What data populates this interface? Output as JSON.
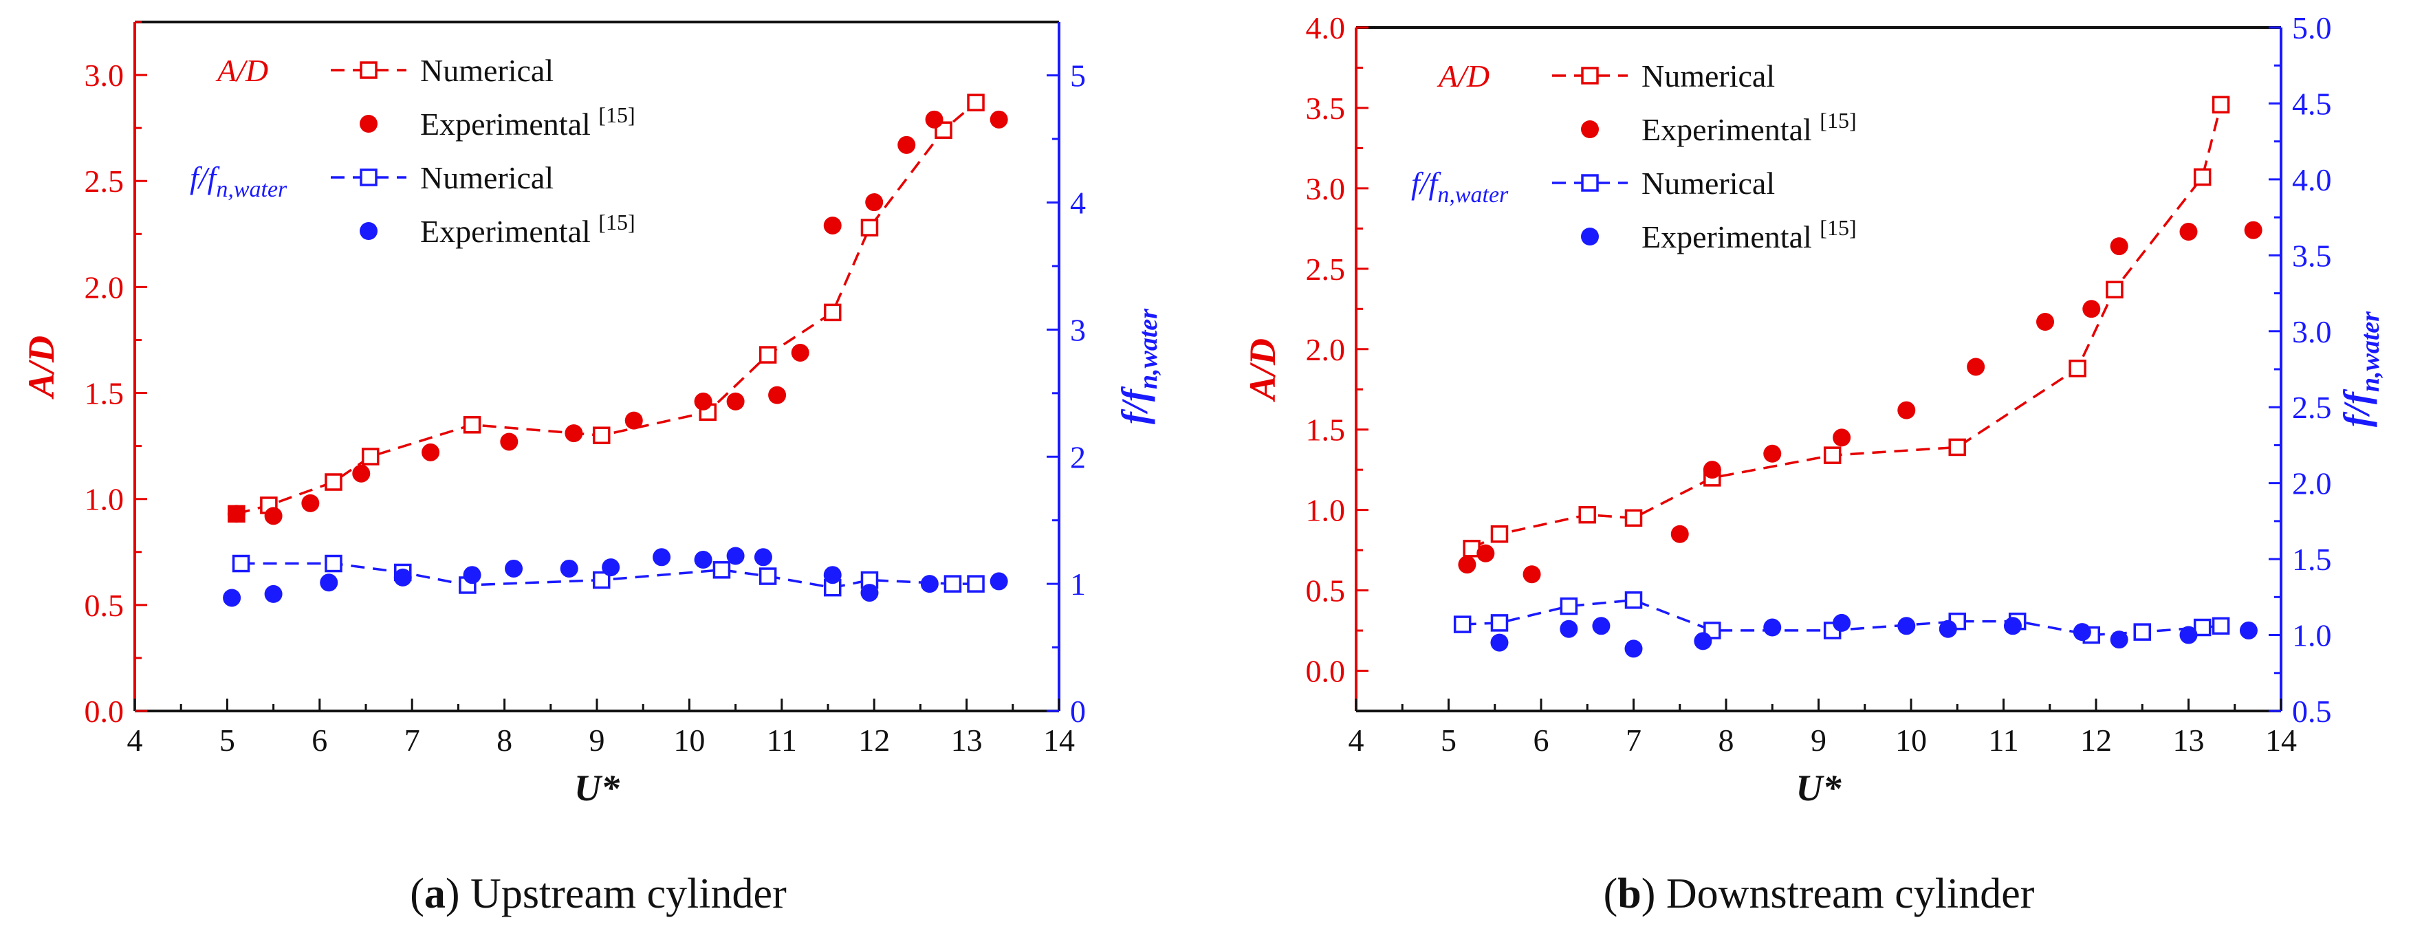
{
  "chart_data": [
    {
      "type": "scatter",
      "panel": "a",
      "caption_letter": "a",
      "caption_text": "Upstream cylinder",
      "xlabel": "U*",
      "ylabel_left": "A/D",
      "ylabel_right_main": "f/f",
      "ylabel_right_sub": "n,water",
      "xlim": [
        4,
        14
      ],
      "ylim_left": [
        0,
        3.25
      ],
      "ylim_right": [
        0,
        5.42
      ],
      "xticks": [
        "4",
        "5",
        "6",
        "7",
        "8",
        "9",
        "10",
        "11",
        "12",
        "13",
        "14"
      ],
      "yticks_left": [
        "0.0",
        "0.5",
        "1.0",
        "1.5",
        "2.0",
        "2.5",
        "3.0"
      ],
      "yticks_right": [
        "0",
        "1",
        "2",
        "3",
        "4",
        "5"
      ],
      "legend": {
        "ad_label": "A/D",
        "ff_label_main": "f/f",
        "ff_label_sub": "n,water",
        "numerical": "Numerical",
        "experimental": "Experimental",
        "ref": "[15]"
      },
      "colors": {
        "ad": "#e60000",
        "ff": "#1a1aff",
        "axis": "#111111"
      },
      "series": [
        {
          "name": "A/D Numerical",
          "axis": "left",
          "style": "dashed-square",
          "color": "#e60000",
          "x": [
            5.1,
            5.45,
            6.15,
            6.55,
            7.65,
            9.05,
            10.2,
            10.85,
            11.55,
            11.95,
            12.75,
            13.1
          ],
          "y": [
            0.93,
            0.97,
            1.08,
            1.2,
            1.35,
            1.3,
            1.41,
            1.68,
            1.88,
            2.28,
            2.74,
            2.87
          ]
        },
        {
          "name": "A/D Experimental [15]",
          "axis": "left",
          "style": "dot",
          "color": "#e60000",
          "x": [
            5.1,
            5.5,
            5.9,
            6.45,
            7.2,
            8.05,
            8.75,
            9.4,
            10.15,
            10.5,
            10.95,
            11.2,
            11.55,
            12.0,
            12.35,
            12.65,
            13.35
          ],
          "y": [
            0.93,
            0.92,
            0.98,
            1.12,
            1.22,
            1.27,
            1.31,
            1.37,
            1.46,
            1.46,
            1.49,
            1.69,
            2.29,
            2.4,
            2.67,
            2.79,
            2.79
          ]
        },
        {
          "name": "f/f_n,water Numerical",
          "axis": "right",
          "style": "dashed-square",
          "color": "#1a1aff",
          "x": [
            5.15,
            6.15,
            6.9,
            7.6,
            9.05,
            10.35,
            10.85,
            11.55,
            11.95,
            12.85,
            13.1
          ],
          "y": [
            1.16,
            1.16,
            1.09,
            0.99,
            1.03,
            1.11,
            1.06,
            0.97,
            1.03,
            1.0,
            1.0
          ]
        },
        {
          "name": "f/f_n,water Experimental [15]",
          "axis": "right",
          "style": "dot",
          "color": "#1a1aff",
          "x": [
            5.05,
            5.5,
            6.1,
            6.9,
            7.65,
            8.1,
            8.7,
            9.15,
            9.7,
            10.15,
            10.5,
            10.8,
            11.55,
            11.95,
            12.6,
            13.35
          ],
          "y": [
            0.89,
            0.92,
            1.01,
            1.05,
            1.07,
            1.12,
            1.12,
            1.13,
            1.21,
            1.19,
            1.22,
            1.21,
            1.07,
            0.93,
            1.0,
            1.02
          ]
        }
      ]
    },
    {
      "type": "scatter",
      "panel": "b",
      "caption_letter": "b",
      "caption_text": "Downstream cylinder",
      "xlabel": "U*",
      "ylabel_left": "A/D",
      "ylabel_right_main": "f/f",
      "ylabel_right_sub": "n,water",
      "xlim": [
        4,
        14
      ],
      "ylim_left": [
        -0.25,
        4.0
      ],
      "ylim_right": [
        0.5,
        5.0
      ],
      "xticks": [
        "4",
        "5",
        "6",
        "7",
        "8",
        "9",
        "10",
        "11",
        "12",
        "13",
        "14"
      ],
      "yticks_left": [
        "0.0",
        "0.5",
        "1.0",
        "1.5",
        "2.0",
        "2.5",
        "3.0",
        "3.5",
        "4.0"
      ],
      "yticks_right": [
        "0.5",
        "1.0",
        "1.5",
        "2.0",
        "2.5",
        "3.0",
        "3.5",
        "4.0",
        "4.5",
        "5.0"
      ],
      "legend": {
        "ad_label": "A/D",
        "ff_label_main": "f/f",
        "ff_label_sub": "n,water",
        "numerical": "Numerical",
        "experimental": "Experimental",
        "ref": "[15]"
      },
      "colors": {
        "ad": "#e60000",
        "ff": "#1a1aff",
        "axis": "#111111"
      },
      "series": [
        {
          "name": "A/D Numerical",
          "axis": "left",
          "style": "dashed-square",
          "color": "#e60000",
          "x": [
            5.25,
            5.55,
            6.5,
            7.0,
            7.85,
            9.15,
            10.5,
            11.8,
            12.2,
            13.15,
            13.35
          ],
          "y": [
            0.76,
            0.85,
            0.97,
            0.95,
            1.2,
            1.34,
            1.39,
            1.88,
            2.37,
            3.07,
            3.52
          ]
        },
        {
          "name": "A/D Experimental [15]",
          "axis": "left",
          "style": "dot",
          "color": "#e60000",
          "x": [
            5.2,
            5.4,
            5.9,
            7.5,
            7.85,
            8.5,
            9.25,
            9.95,
            10.7,
            11.45,
            11.95,
            12.25,
            13.0,
            13.7
          ],
          "y": [
            0.66,
            0.73,
            0.6,
            0.85,
            1.25,
            1.35,
            1.45,
            1.62,
            1.89,
            2.17,
            2.25,
            2.64,
            2.73,
            2.74
          ]
        },
        {
          "name": "f/f_n,water Numerical",
          "axis": "right",
          "style": "dashed-square",
          "color": "#1a1aff",
          "x": [
            5.15,
            5.55,
            6.3,
            7.0,
            7.85,
            9.15,
            10.5,
            11.15,
            11.95,
            12.5,
            13.15,
            13.35
          ],
          "y": [
            1.07,
            1.08,
            1.19,
            1.23,
            1.03,
            1.03,
            1.09,
            1.09,
            1.0,
            1.02,
            1.05,
            1.06
          ]
        },
        {
          "name": "f/f_n,water Experimental [15]",
          "axis": "right",
          "style": "dot",
          "color": "#1a1aff",
          "x": [
            5.55,
            6.3,
            6.65,
            7.0,
            7.75,
            8.5,
            9.25,
            9.95,
            10.4,
            11.1,
            11.85,
            12.25,
            13.0,
            13.65
          ],
          "y": [
            0.95,
            1.04,
            1.06,
            0.91,
            0.96,
            1.05,
            1.08,
            1.06,
            1.04,
            1.06,
            1.02,
            0.97,
            1.0,
            1.03
          ]
        }
      ]
    }
  ]
}
